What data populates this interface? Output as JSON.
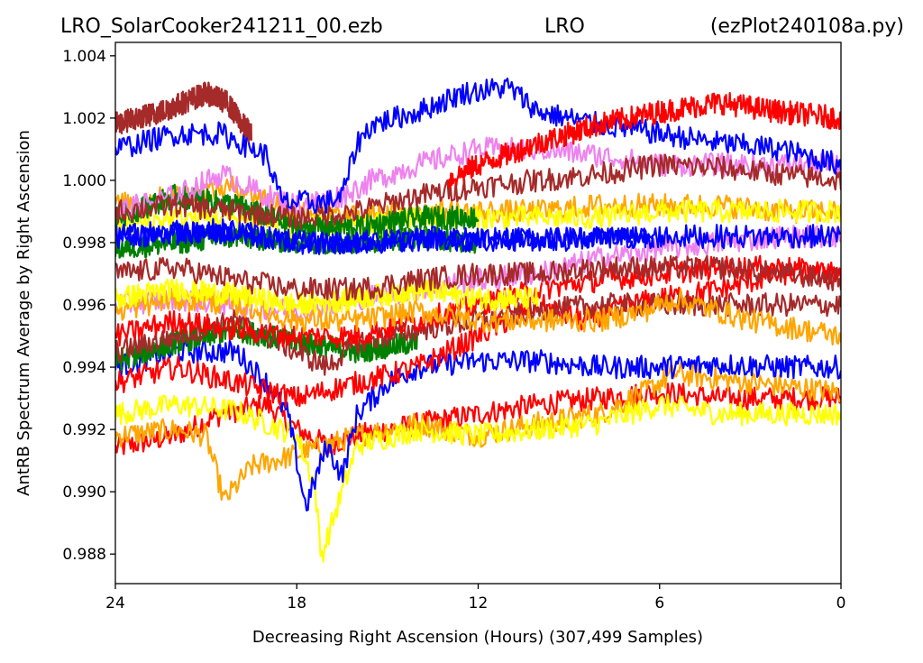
{
  "title": {
    "left": "LRO_SolarCooker241211_00.ezb",
    "center": "LRO",
    "right": "(ezPlot240108a.py)"
  },
  "chart_data": {
    "type": "line",
    "xlabel": "Decreasing Right Ascension (Hours) (307,499 Samples)",
    "ylabel": "AntRB Spectrum Average by Right Ascension",
    "x_ticks": [
      "24",
      "18",
      "12",
      "6",
      "0"
    ],
    "x_tick_values": [
      24,
      18,
      12,
      6,
      0
    ],
    "y_ticks": [
      "0.988",
      "0.990",
      "0.992",
      "0.994",
      "0.996",
      "0.998",
      "1.000",
      "1.002",
      "1.004"
    ],
    "y_tick_values": [
      0.988,
      0.99,
      0.992,
      0.994,
      0.996,
      0.998,
      1.0,
      1.002,
      1.004
    ],
    "xlim": [
      24,
      0
    ],
    "ylim": [
      0.98705,
      1.00443
    ],
    "x_reversed": true,
    "grid": false,
    "legend": "none",
    "note": "Many noisy daily traces, drawn in repeating colors.",
    "series": [
      {
        "color": "#ff0000",
        "x": [
          24,
          22,
          20.5,
          19,
          18,
          17,
          16,
          15,
          12,
          10,
          8,
          6,
          4,
          2,
          0
        ],
        "y": [
          0.9914,
          0.9918,
          0.9925,
          0.9928,
          0.992,
          0.9915,
          0.9918,
          0.992,
          0.9925,
          0.9928,
          0.993,
          0.9932,
          0.993,
          0.993,
          0.993
        ]
      },
      {
        "color": "#ffa500",
        "x": [
          24,
          22,
          21,
          20.4,
          19.5,
          18,
          16,
          14,
          12,
          10,
          8,
          6.5,
          5.5,
          3,
          0
        ],
        "y": [
          0.9918,
          0.992,
          0.9918,
          0.9897,
          0.9908,
          0.9912,
          0.9918,
          0.9922,
          0.9918,
          0.9922,
          0.9925,
          0.9932,
          0.9938,
          0.9935,
          0.9932
        ]
      },
      {
        "color": "#ffff00",
        "x": [
          24,
          22,
          20,
          18,
          17.4,
          17.2,
          16,
          14,
          12,
          10,
          8,
          7,
          6,
          4,
          2,
          0
        ],
        "y": [
          0.9925,
          0.9928,
          0.9926,
          0.9918,
          0.9902,
          0.9879,
          0.9915,
          0.992,
          0.9918,
          0.992,
          0.9922,
          0.9925,
          0.9928,
          0.9925,
          0.9925,
          0.9925
        ]
      },
      {
        "color": "#0000ff",
        "x": [
          24,
          22,
          20,
          19,
          18.3,
          17.7,
          17,
          16.5,
          16,
          15,
          14,
          12,
          10,
          8,
          7,
          6,
          4,
          2,
          0
        ],
        "y": [
          0.994,
          0.9945,
          0.9945,
          0.9935,
          0.9925,
          0.9895,
          0.9915,
          0.9905,
          0.9925,
          0.9935,
          0.994,
          0.9942,
          0.9942,
          0.994,
          0.994,
          0.994,
          0.9941,
          0.994,
          0.994
        ]
      },
      {
        "color": "#ff0000",
        "x": [
          24,
          22,
          20,
          18,
          16,
          14,
          12,
          10,
          8.5,
          7,
          6,
          4,
          2,
          0
        ],
        "y": [
          0.9935,
          0.994,
          0.9935,
          0.993,
          0.9935,
          0.994,
          0.995,
          0.996,
          0.9955,
          0.996,
          0.9962,
          0.9965,
          0.997,
          0.997
        ]
      },
      {
        "color": "#008000",
        "x": [
          24,
          22,
          20,
          18,
          16,
          14
        ],
        "y": [
          0.9942,
          0.9948,
          0.9952,
          0.9948,
          0.9945,
          0.9948
        ]
      },
      {
        "color": "#a52a2a",
        "x": [
          24,
          22,
          20,
          18,
          17,
          16,
          14,
          12,
          10,
          8,
          6,
          4,
          2,
          0
        ],
        "y": [
          0.9945,
          0.995,
          0.9955,
          0.9945,
          0.994,
          0.9948,
          0.9952,
          0.9955,
          0.9958,
          0.996,
          0.996,
          0.996,
          0.996,
          0.996
        ]
      },
      {
        "color": "#ff0000",
        "x": [
          24,
          22,
          20,
          18,
          16,
          14,
          12,
          10,
          8,
          6,
          4,
          2,
          0
        ],
        "y": [
          0.995,
          0.9955,
          0.9952,
          0.995,
          0.995,
          0.9955,
          0.996,
          0.9965,
          0.9968,
          0.997,
          0.9972,
          0.9972,
          0.997
        ]
      },
      {
        "color": "#ee82ee",
        "x": [
          24,
          22,
          20,
          18,
          16,
          14,
          12,
          10,
          8,
          6,
          4,
          2,
          0
        ],
        "y": [
          0.996,
          0.9962,
          0.996,
          0.9958,
          0.9962,
          0.9965,
          0.9968,
          0.997,
          0.9975,
          0.9978,
          0.998,
          0.9982,
          0.9982
        ]
      },
      {
        "color": "#ffa500",
        "x": [
          24,
          22,
          20,
          18,
          16,
          14,
          12,
          10,
          8,
          6.5,
          5.5,
          3,
          0
        ],
        "y": [
          0.9958,
          0.9962,
          0.996,
          0.9955,
          0.9955,
          0.9958,
          0.9955,
          0.9955,
          0.9955,
          0.9958,
          0.9962,
          0.9955,
          0.995
        ]
      },
      {
        "color": "#ffff00",
        "x": [
          24,
          22,
          20,
          18,
          16,
          14,
          12,
          10
        ],
        "y": [
          0.9962,
          0.9965,
          0.9963,
          0.996,
          0.9962,
          0.9965,
          0.9962,
          0.9962
        ]
      },
      {
        "color": "#a52a2a",
        "x": [
          24,
          22,
          20,
          18,
          16,
          14,
          12,
          10,
          8,
          6,
          4,
          2,
          0
        ],
        "y": [
          0.997,
          0.9972,
          0.9968,
          0.9965,
          0.9965,
          0.9968,
          0.997,
          0.997,
          0.9972,
          0.9972,
          0.9972,
          0.997,
          0.9968
        ]
      },
      {
        "color": "#008000",
        "x": [
          24,
          22,
          20,
          18,
          16,
          14,
          12
        ],
        "y": [
          0.9978,
          0.998,
          0.9982,
          0.998,
          0.998,
          0.9982,
          0.998
        ]
      },
      {
        "color": "#ffa500",
        "x": [
          24,
          22,
          20,
          18,
          16,
          14,
          12,
          10,
          8,
          6,
          4,
          2,
          0
        ],
        "y": [
          0.9992,
          0.9995,
          0.9998,
          0.999,
          0.9988,
          0.999,
          0.999,
          0.999,
          0.9992,
          0.9992,
          0.9992,
          0.999,
          0.999
        ]
      },
      {
        "color": "#ffff00",
        "x": [
          24,
          22,
          20,
          18,
          16,
          14,
          12,
          10,
          8,
          6,
          4,
          2,
          0
        ],
        "y": [
          0.9985,
          0.9988,
          0.9988,
          0.9985,
          0.9985,
          0.9988,
          0.9988,
          0.9988,
          0.9988,
          0.999,
          0.999,
          0.999,
          0.999
        ]
      },
      {
        "color": "#008000",
        "x": [
          24,
          22,
          20,
          18,
          16,
          14,
          12
        ],
        "y": [
          0.9988,
          0.9995,
          0.9992,
          0.9985,
          0.9985,
          0.9988,
          0.9988
        ]
      },
      {
        "color": "#ee82ee",
        "x": [
          24,
          22,
          20.5,
          19,
          18,
          16.5,
          15.5,
          14,
          12,
          10,
          8,
          6,
          4,
          2,
          0
        ],
        "y": [
          0.999,
          0.9995,
          1.0002,
          0.9995,
          0.9992,
          0.9995,
          1.0,
          1.0005,
          1.001,
          1.001,
          1.0008,
          1.0005,
          1.0005,
          1.0005,
          1.0005
        ]
      },
      {
        "color": "#a52a2a",
        "x": [
          24,
          22,
          20,
          18,
          16,
          14,
          12,
          10,
          8,
          6,
          4,
          2,
          0
        ],
        "y": [
          0.999,
          0.9992,
          0.999,
          0.9988,
          0.999,
          0.9995,
          0.9998,
          1.0,
          1.0002,
          1.0005,
          1.0004,
          1.0002,
          1.0
        ]
      },
      {
        "color": "#0000ff",
        "x": [
          24,
          22,
          20.5,
          19,
          18.5,
          17,
          16.5,
          16,
          15.5,
          14,
          12.5,
          11,
          10,
          9,
          8,
          6,
          4,
          2,
          0
        ],
        "y": [
          1.001,
          1.0015,
          1.0015,
          1.0008,
          0.9993,
          0.9993,
          0.9995,
          1.0012,
          1.0018,
          1.0022,
          1.0028,
          1.003,
          1.0022,
          1.002,
          1.0018,
          1.0015,
          1.0012,
          1.001,
          1.0005
        ]
      },
      {
        "color": "#ff0000",
        "x": [
          13,
          12,
          10,
          8,
          6,
          4,
          2,
          0
        ],
        "y": [
          1.0,
          1.0005,
          1.0012,
          1.0018,
          1.0022,
          1.0025,
          1.0022,
          1.002
        ]
      },
      {
        "color": "#a52a2a",
        "x": [
          24,
          22.5,
          21,
          20.3,
          19.8,
          19.5
        ],
        "y": [
          1.0018,
          1.0022,
          1.0028,
          1.0025,
          1.0018,
          1.0015
        ]
      },
      {
        "color": "#0000ff",
        "x": [
          24,
          22,
          20,
          18,
          16,
          14,
          12,
          10,
          8,
          6.2
        ],
        "y": [
          0.9982,
          0.9983,
          0.9983,
          0.998,
          0.998,
          0.9981,
          0.9981,
          0.9981,
          0.9982,
          0.9982
        ]
      },
      {
        "color": "#0000ff",
        "x": [
          24,
          22,
          20,
          18,
          16,
          14,
          12,
          10,
          8,
          6,
          4,
          2,
          0
        ],
        "y": [
          0.9982,
          0.9984,
          0.9984,
          0.998,
          0.998,
          0.9982,
          0.9981,
          0.9981,
          0.9981,
          0.9982,
          0.9982,
          0.9982,
          0.9982
        ]
      }
    ]
  }
}
